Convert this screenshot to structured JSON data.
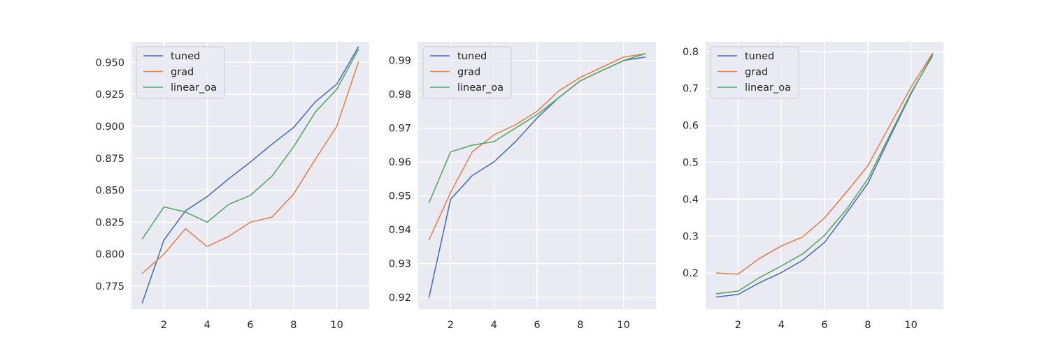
{
  "colors": {
    "tuned": "#4c72b0",
    "grad": "#dd8452",
    "linear_oa": "#55a868",
    "panel_background": "#eaeaf2",
    "grid": "#ffffff"
  },
  "chart_data": [
    {
      "type": "line",
      "title": "",
      "xlabel": "",
      "ylabel": "",
      "xlim": [
        0.5,
        11.5
      ],
      "ylim": [
        0.757,
        0.966
      ],
      "xticks": [
        2,
        4,
        6,
        8,
        10
      ],
      "xtick_labels": [
        "2",
        "4",
        "6",
        "8",
        "10"
      ],
      "yticks": [
        0.775,
        0.8,
        0.825,
        0.85,
        0.875,
        0.9,
        0.925,
        0.95
      ],
      "ytick_labels": [
        "0.775",
        "0.800",
        "0.825",
        "0.850",
        "0.875",
        "0.900",
        "0.925",
        "0.950"
      ],
      "grid": true,
      "legend": "top-left",
      "x": [
        1,
        2,
        3,
        4,
        5,
        6,
        7,
        8,
        9,
        10,
        11
      ],
      "series": [
        {
          "name": "tuned",
          "values": [
            0.762,
            0.811,
            0.834,
            0.845,
            0.859,
            0.872,
            0.886,
            0.899,
            0.919,
            0.933,
            0.962
          ]
        },
        {
          "name": "grad",
          "values": [
            0.785,
            0.8,
            0.82,
            0.806,
            0.814,
            0.825,
            0.829,
            0.847,
            0.874,
            0.9,
            0.95
          ]
        },
        {
          "name": "linear_oa",
          "values": [
            0.812,
            0.837,
            0.833,
            0.825,
            0.839,
            0.846,
            0.861,
            0.884,
            0.911,
            0.929,
            0.96
          ]
        }
      ]
    },
    {
      "type": "line",
      "title": "",
      "xlabel": "",
      "ylabel": "",
      "xlim": [
        0.5,
        11.5
      ],
      "ylim": [
        0.9165,
        0.9955
      ],
      "xticks": [
        2,
        4,
        6,
        8,
        10
      ],
      "xtick_labels": [
        "2",
        "4",
        "6",
        "8",
        "10"
      ],
      "yticks": [
        0.92,
        0.93,
        0.94,
        0.95,
        0.96,
        0.97,
        0.98,
        0.99
      ],
      "ytick_labels": [
        "0.92",
        "0.93",
        "0.94",
        "0.95",
        "0.96",
        "0.97",
        "0.98",
        "0.99"
      ],
      "grid": true,
      "legend": "top-left",
      "x": [
        1,
        2,
        3,
        4,
        5,
        6,
        7,
        8,
        9,
        10,
        11
      ],
      "series": [
        {
          "name": "tuned",
          "values": [
            0.92,
            0.949,
            0.956,
            0.96,
            0.966,
            0.973,
            0.979,
            0.984,
            0.987,
            0.99,
            0.991
          ]
        },
        {
          "name": "grad",
          "values": [
            0.937,
            0.951,
            0.963,
            0.968,
            0.971,
            0.975,
            0.981,
            0.985,
            0.988,
            0.991,
            0.992
          ]
        },
        {
          "name": "linear_oa",
          "values": [
            0.948,
            0.963,
            0.965,
            0.966,
            0.97,
            0.974,
            0.979,
            0.984,
            0.987,
            0.99,
            0.992
          ]
        }
      ]
    },
    {
      "type": "line",
      "title": "",
      "xlabel": "",
      "ylabel": "",
      "xlim": [
        0.5,
        11.5
      ],
      "ylim": [
        0.102,
        0.826
      ],
      "xticks": [
        2,
        4,
        6,
        8,
        10
      ],
      "xtick_labels": [
        "2",
        "4",
        "6",
        "8",
        "10"
      ],
      "yticks": [
        0.2,
        0.3,
        0.4,
        0.5,
        0.6,
        0.7,
        0.8
      ],
      "ytick_labels": [
        "0.2",
        "0.3",
        "0.4",
        "0.5",
        "0.6",
        "0.7",
        "0.8"
      ],
      "grid": true,
      "legend": "top-left",
      "x": [
        1,
        2,
        3,
        4,
        5,
        6,
        7,
        8,
        9,
        10,
        11
      ],
      "series": [
        {
          "name": "tuned",
          "values": [
            0.135,
            0.142,
            0.174,
            0.201,
            0.235,
            0.283,
            0.361,
            0.442,
            0.565,
            0.685,
            0.792
          ]
        },
        {
          "name": "grad",
          "values": [
            0.2,
            0.197,
            0.24,
            0.273,
            0.298,
            0.349,
            0.418,
            0.49,
            0.597,
            0.703,
            0.795
          ]
        },
        {
          "name": "linear_oa",
          "values": [
            0.144,
            0.151,
            0.188,
            0.219,
            0.252,
            0.302,
            0.371,
            0.454,
            0.571,
            0.688,
            0.788
          ]
        }
      ]
    }
  ]
}
